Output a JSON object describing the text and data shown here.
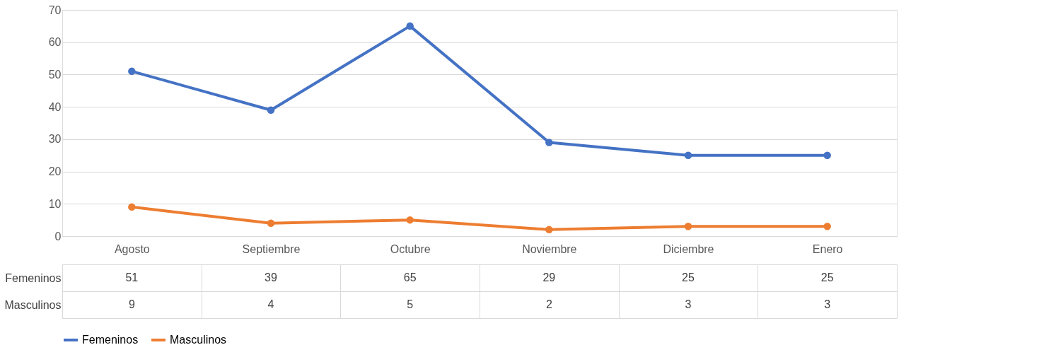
{
  "chart_data": {
    "type": "line",
    "categories": [
      "Agosto",
      "Septiembre",
      "Octubre",
      "Noviembre",
      "Diciembre",
      "Enero"
    ],
    "series": [
      {
        "name": "Femeninos",
        "color": "#4472c4",
        "values": [
          51,
          39,
          65,
          29,
          25,
          25
        ]
      },
      {
        "name": "Masculinos",
        "color": "#ed7d31",
        "values": [
          9,
          4,
          5,
          2,
          3,
          3
        ]
      }
    ],
    "ylim": [
      0,
      70
    ],
    "yticks": [
      0,
      10,
      20,
      30,
      40,
      50,
      60,
      70
    ],
    "grid": "y",
    "marker": "circle",
    "line_style": "solid",
    "legend": "bottom",
    "data_labels": true
  }
}
